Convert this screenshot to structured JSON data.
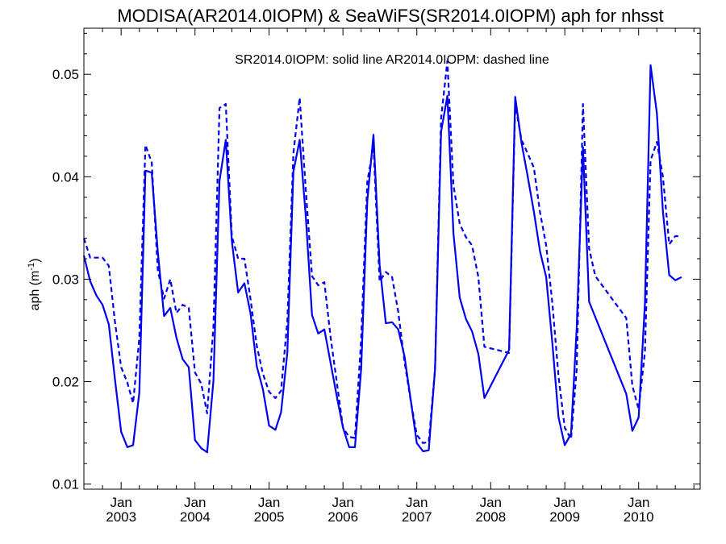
{
  "chart_data": {
    "type": "line",
    "title": "MODISA(AR2014.0IOPM) & SeaWiFS(SR2014.0IOPM)  aph for nhsst",
    "annotation": "SR2014.0IOPM: solid line   AR2014.0IOPM: dashed line",
    "ylabel": "aph (m",
    "ylabel_sup": "-1",
    "ylabel_close": ")",
    "xlim": [
      "2002-07-01",
      "2010-11-01"
    ],
    "ylim": [
      0.0095,
      0.0545
    ],
    "yticks": [
      0.01,
      0.02,
      0.03,
      0.04,
      0.05
    ],
    "ytick_labels": [
      "0.01",
      "0.02",
      "0.03",
      "0.04",
      "0.05"
    ],
    "xticks": [
      "2003-01-01",
      "2004-01-01",
      "2005-01-01",
      "2006-01-01",
      "2007-01-01",
      "2008-01-01",
      "2009-01-01",
      "2010-01-01"
    ],
    "xtick_month": "Jan",
    "xtick_years": [
      "2003",
      "2004",
      "2005",
      "2006",
      "2007",
      "2008",
      "2009",
      "2010"
    ],
    "grid": false,
    "color": "#0000ee",
    "series": [
      {
        "name": "SR2014.0IOPM",
        "style": "solid",
        "points": [
          [
            "2002-07-01",
            0.0323
          ],
          [
            "2002-08-01",
            0.0298
          ],
          [
            "2002-09-01",
            0.0284
          ],
          [
            "2002-10-01",
            0.0275
          ],
          [
            "2002-11-01",
            0.0256
          ],
          [
            "2002-12-01",
            0.0203
          ],
          [
            "2003-01-01",
            0.0151
          ],
          [
            "2003-02-01",
            0.0136
          ],
          [
            "2003-03-01",
            0.0138
          ],
          [
            "2003-04-01",
            0.0189
          ],
          [
            "2003-05-01",
            0.0406
          ],
          [
            "2003-06-01",
            0.0404
          ],
          [
            "2003-07-01",
            0.0327
          ],
          [
            "2003-08-01",
            0.0264
          ],
          [
            "2003-09-01",
            0.0272
          ],
          [
            "2003-10-01",
            0.0243
          ],
          [
            "2003-11-01",
            0.0222
          ],
          [
            "2003-12-01",
            0.0214
          ],
          [
            "2004-01-01",
            0.0143
          ],
          [
            "2004-02-01",
            0.0135
          ],
          [
            "2004-03-01",
            0.0131
          ],
          [
            "2004-04-01",
            0.0201
          ],
          [
            "2004-05-01",
            0.0396
          ],
          [
            "2004-06-01",
            0.0436
          ],
          [
            "2004-07-01",
            0.0337
          ],
          [
            "2004-08-01",
            0.0287
          ],
          [
            "2004-09-01",
            0.0296
          ],
          [
            "2004-10-01",
            0.0267
          ],
          [
            "2004-11-01",
            0.0215
          ],
          [
            "2004-12-01",
            0.0193
          ],
          [
            "2005-01-01",
            0.0157
          ],
          [
            "2005-02-01",
            0.0153
          ],
          [
            "2005-03-01",
            0.017
          ],
          [
            "2005-04-01",
            0.0228
          ],
          [
            "2005-05-01",
            0.0405
          ],
          [
            "2005-06-01",
            0.0436
          ],
          [
            "2005-07-01",
            0.0362
          ],
          [
            "2005-08-01",
            0.0265
          ],
          [
            "2005-09-01",
            0.0247
          ],
          [
            "2005-10-01",
            0.0251
          ],
          [
            "2005-11-01",
            0.0218
          ],
          [
            "2005-12-01",
            0.0186
          ],
          [
            "2006-01-01",
            0.0155
          ],
          [
            "2006-02-01",
            0.0136
          ],
          [
            "2006-03-01",
            0.0136
          ],
          [
            "2006-04-01",
            0.0212
          ],
          [
            "2006-05-01",
            0.0376
          ],
          [
            "2006-06-01",
            0.0441
          ],
          [
            "2006-07-01",
            0.0314
          ],
          [
            "2006-08-01",
            0.0257
          ],
          [
            "2006-09-01",
            0.0258
          ],
          [
            "2006-10-01",
            0.0251
          ],
          [
            "2006-11-01",
            0.0225
          ],
          [
            "2006-12-01",
            0.0183
          ],
          [
            "2007-01-01",
            0.014
          ],
          [
            "2007-02-01",
            0.0132
          ],
          [
            "2007-03-01",
            0.0133
          ],
          [
            "2007-04-01",
            0.0212
          ],
          [
            "2007-05-01",
            0.0444
          ],
          [
            "2007-06-01",
            0.0479
          ],
          [
            "2007-07-01",
            0.0345
          ],
          [
            "2007-08-01",
            0.0282
          ],
          [
            "2007-09-01",
            0.0261
          ],
          [
            "2007-10-01",
            0.0249
          ],
          [
            "2007-11-01",
            0.0227
          ],
          [
            "2007-12-01",
            0.0184
          ],
          [
            "2008-04-01",
            0.0231
          ],
          [
            "2008-05-01",
            0.0478
          ],
          [
            "2008-06-01",
            0.0433
          ],
          [
            "2008-07-01",
            0.0401
          ],
          [
            "2008-08-01",
            0.0366
          ],
          [
            "2008-09-01",
            0.0327
          ],
          [
            "2008-10-01",
            0.0302
          ],
          [
            "2008-11-01",
            0.0237
          ],
          [
            "2008-12-01",
            0.0165
          ],
          [
            "2009-01-01",
            0.0138
          ],
          [
            "2009-02-01",
            0.0149
          ],
          [
            "2009-03-01",
            0.0252
          ],
          [
            "2009-04-01",
            0.0429
          ],
          [
            "2009-05-01",
            0.0278
          ],
          [
            "2009-11-01",
            0.0188
          ],
          [
            "2009-12-01",
            0.0152
          ],
          [
            "2010-01-01",
            0.0165
          ],
          [
            "2010-02-01",
            0.0276
          ],
          [
            "2010-03-01",
            0.0509
          ],
          [
            "2010-04-01",
            0.0462
          ],
          [
            "2010-05-01",
            0.0366
          ],
          [
            "2010-06-01",
            0.0304
          ],
          [
            "2010-07-01",
            0.0299
          ],
          [
            "2010-08-01",
            0.0302
          ]
        ]
      },
      {
        "name": "AR2014.0IOPM",
        "style": "dashed",
        "points": [
          [
            "2002-07-01",
            0.034
          ],
          [
            "2002-08-01",
            0.0321
          ],
          [
            "2002-09-01",
            0.0321
          ],
          [
            "2002-10-01",
            0.0321
          ],
          [
            "2002-11-01",
            0.0313
          ],
          [
            "2002-12-01",
            0.0259
          ],
          [
            "2003-01-01",
            0.0214
          ],
          [
            "2003-02-01",
            0.0199
          ],
          [
            "2003-03-01",
            0.0179
          ],
          [
            "2003-04-01",
            0.0242
          ],
          [
            "2003-05-01",
            0.0431
          ],
          [
            "2003-06-01",
            0.0414
          ],
          [
            "2003-07-01",
            0.0309
          ],
          [
            "2003-08-01",
            0.0281
          ],
          [
            "2003-09-01",
            0.03
          ],
          [
            "2003-10-01",
            0.0267
          ],
          [
            "2003-11-01",
            0.0275
          ],
          [
            "2003-12-01",
            0.0272
          ],
          [
            "2004-01-01",
            0.0209
          ],
          [
            "2004-02-01",
            0.0198
          ],
          [
            "2004-03-01",
            0.0169
          ],
          [
            "2004-04-01",
            0.0254
          ],
          [
            "2004-05-01",
            0.0467
          ],
          [
            "2004-06-01",
            0.0471
          ],
          [
            "2004-07-01",
            0.0342
          ],
          [
            "2004-08-01",
            0.032
          ],
          [
            "2004-09-01",
            0.032
          ],
          [
            "2004-10-01",
            0.0281
          ],
          [
            "2004-11-01",
            0.0235
          ],
          [
            "2004-12-01",
            0.0208
          ],
          [
            "2005-01-01",
            0.019
          ],
          [
            "2005-02-01",
            0.0184
          ],
          [
            "2005-03-01",
            0.0191
          ],
          [
            "2005-04-01",
            0.0259
          ],
          [
            "2005-05-01",
            0.0423
          ],
          [
            "2005-06-01",
            0.0477
          ],
          [
            "2005-07-01",
            0.0388
          ],
          [
            "2005-08-01",
            0.0303
          ],
          [
            "2005-09-01",
            0.0294
          ],
          [
            "2005-10-01",
            0.0297
          ],
          [
            "2005-11-01",
            0.0243
          ],
          [
            "2005-12-01",
            0.02
          ],
          [
            "2006-01-01",
            0.0155
          ],
          [
            "2006-02-01",
            0.0146
          ],
          [
            "2006-03-01",
            0.0145
          ],
          [
            "2006-04-01",
            0.0241
          ],
          [
            "2006-05-01",
            0.0395
          ],
          [
            "2006-06-01",
            0.043
          ],
          [
            "2006-07-01",
            0.0298
          ],
          [
            "2006-08-01",
            0.0307
          ],
          [
            "2006-09-01",
            0.0302
          ],
          [
            "2006-10-01",
            0.0268
          ],
          [
            "2006-11-01",
            0.022
          ],
          [
            "2006-12-01",
            0.0182
          ],
          [
            "2007-01-01",
            0.0148
          ],
          [
            "2007-02-01",
            0.014
          ],
          [
            "2007-03-01",
            0.0141
          ],
          [
            "2007-04-01",
            0.0212
          ],
          [
            "2007-05-01",
            0.0457
          ],
          [
            "2007-06-01",
            0.0513
          ],
          [
            "2007-07-01",
            0.0392
          ],
          [
            "2007-08-01",
            0.0354
          ],
          [
            "2007-09-01",
            0.0341
          ],
          [
            "2007-10-01",
            0.0333
          ],
          [
            "2007-11-01",
            0.0302
          ],
          [
            "2007-12-01",
            0.0234
          ],
          [
            "2008-04-01",
            0.0228
          ],
          [
            "2008-05-01",
            0.0471
          ],
          [
            "2008-06-01",
            0.0436
          ],
          [
            "2008-07-01",
            0.0423
          ],
          [
            "2008-08-01",
            0.0409
          ],
          [
            "2008-09-01",
            0.0365
          ],
          [
            "2008-10-01",
            0.0333
          ],
          [
            "2008-11-01",
            0.0276
          ],
          [
            "2008-12-01",
            0.0205
          ],
          [
            "2009-01-01",
            0.0155
          ],
          [
            "2009-02-01",
            0.0144
          ],
          [
            "2009-03-01",
            0.0212
          ],
          [
            "2009-04-01",
            0.0471
          ],
          [
            "2009-05-01",
            0.033
          ],
          [
            "2009-06-01",
            0.0303
          ],
          [
            "2009-11-01",
            0.0262
          ],
          [
            "2009-12-01",
            0.0196
          ],
          [
            "2010-01-01",
            0.0173
          ],
          [
            "2010-02-01",
            0.0229
          ],
          [
            "2010-03-01",
            0.0416
          ],
          [
            "2010-04-01",
            0.0434
          ],
          [
            "2010-05-01",
            0.04
          ],
          [
            "2010-06-01",
            0.0334
          ],
          [
            "2010-07-01",
            0.0342
          ],
          [
            "2010-08-01",
            0.0342
          ]
        ]
      }
    ]
  }
}
